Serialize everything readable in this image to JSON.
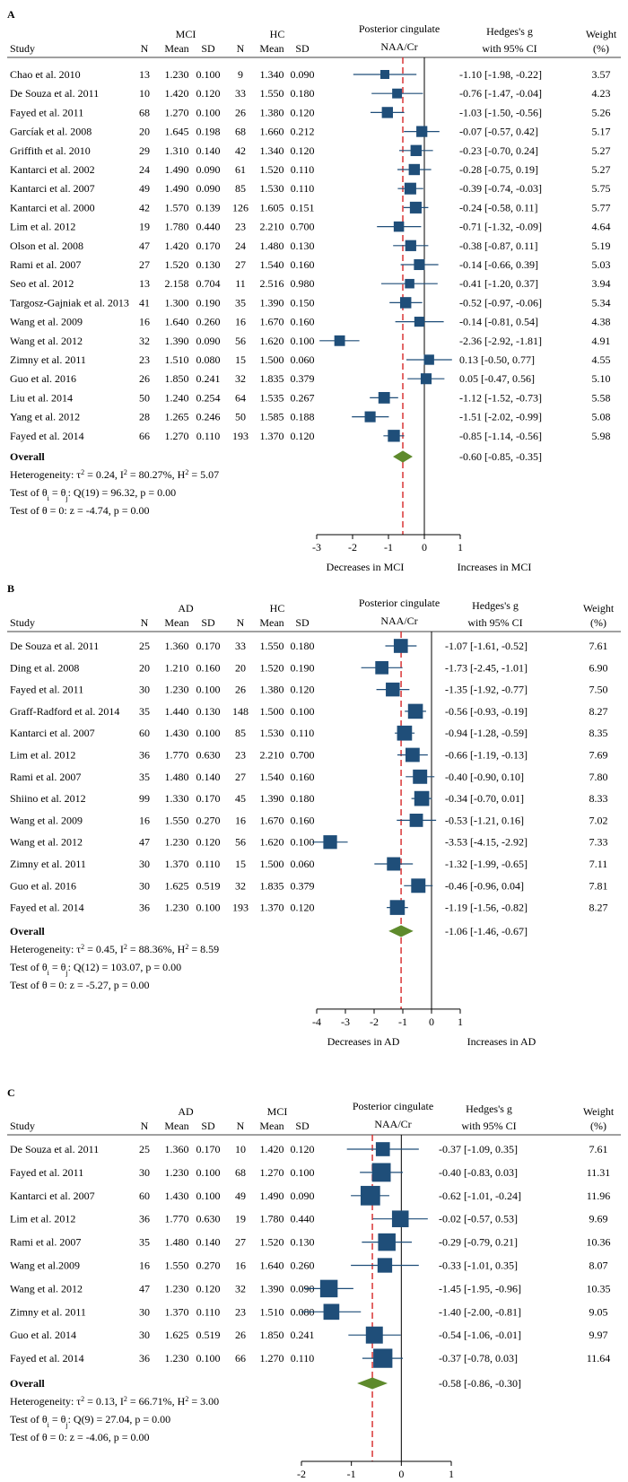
{
  "chart_data": [
    {
      "type": "forest",
      "panel": "A",
      "groups": [
        "MCI",
        "HC"
      ],
      "outcome_title": [
        "Posterior cingulate",
        "NAA/Cr"
      ],
      "columns": [
        "Study",
        "N",
        "Mean",
        "SD",
        "N",
        "Mean",
        "SD",
        "Hedges's g",
        "with 95% CI",
        "Weight",
        "(%)"
      ],
      "studies": [
        {
          "study": "Chao et al. 2010",
          "n1": "13",
          "m1": "1.230",
          "sd1": "0.100",
          "n2": "9",
          "m2": "1.340",
          "sd2": "0.090",
          "g": -1.1,
          "lo": -1.98,
          "hi": -0.22,
          "ci": "-1.10 [-1.98, -0.22]",
          "w": "3.57"
        },
        {
          "study": "De Souza et al. 2011",
          "n1": "10",
          "m1": "1.420",
          "sd1": "0.120",
          "n2": "33",
          "m2": "1.550",
          "sd2": "0.180",
          "g": -0.76,
          "lo": -1.47,
          "hi": -0.04,
          "ci": "-0.76 [-1.47, -0.04]",
          "w": "4.23"
        },
        {
          "study": "Fayed et al. 2011",
          "n1": "68",
          "m1": "1.270",
          "sd1": "0.100",
          "n2": "26",
          "m2": "1.380",
          "sd2": "0.120",
          "g": -1.03,
          "lo": -1.5,
          "hi": -0.56,
          "ci": "-1.03 [-1.50, -0.56]",
          "w": "5.26"
        },
        {
          "study": "Garcíak et al. 2008",
          "n1": "20",
          "m1": "1.645",
          "sd1": "0.198",
          "n2": "68",
          "m2": "1.660",
          "sd2": "0.212",
          "g": -0.07,
          "lo": -0.57,
          "hi": 0.42,
          "ci": "-0.07 [-0.57, 0.42]",
          "w": "5.17"
        },
        {
          "study": "Griffith et al. 2010",
          "n1": "29",
          "m1": "1.310",
          "sd1": "0.140",
          "n2": "42",
          "m2": "1.340",
          "sd2": "0.120",
          "g": -0.23,
          "lo": -0.7,
          "hi": 0.24,
          "ci": "-0.23 [-0.70, 0.24]",
          "w": "5.27"
        },
        {
          "study": "Kantarci et al. 2002",
          "n1": "24",
          "m1": "1.490",
          "sd1": "0.090",
          "n2": "61",
          "m2": "1.520",
          "sd2": "0.110",
          "g": -0.28,
          "lo": -0.75,
          "hi": 0.19,
          "ci": "-0.28 [-0.75, 0.19]",
          "w": "5.27"
        },
        {
          "study": "Kantarci et al. 2007",
          "n1": "49",
          "m1": "1.490",
          "sd1": "0.090",
          "n2": "85",
          "m2": "1.530",
          "sd2": "0.110",
          "g": -0.39,
          "lo": -0.74,
          "hi": -0.03,
          "ci": "-0.39 [-0.74, -0.03]",
          "w": "5.75"
        },
        {
          "study": "Kantarci et al. 2000",
          "n1": "42",
          "m1": "1.570",
          "sd1": "0.139",
          "n2": "126",
          "m2": "1.605",
          "sd2": "0.151",
          "g": -0.24,
          "lo": -0.58,
          "hi": 0.11,
          "ci": "-0.24 [-0.58, 0.11]",
          "w": "5.77"
        },
        {
          "study": "Lim et al. 2012",
          "n1": "19",
          "m1": "1.780",
          "sd1": "0.440",
          "n2": "23",
          "m2": "2.210",
          "sd2": "0.700",
          "g": -0.71,
          "lo": -1.32,
          "hi": -0.09,
          "ci": "-0.71 [-1.32, -0.09]",
          "w": "4.64"
        },
        {
          "study": "Olson et al. 2008",
          "n1": "47",
          "m1": "1.420",
          "sd1": "0.170",
          "n2": "24",
          "m2": "1.480",
          "sd2": "0.130",
          "g": -0.38,
          "lo": -0.87,
          "hi": 0.11,
          "ci": "-0.38 [-0.87, 0.11]",
          "w": "5.19"
        },
        {
          "study": "Rami et al. 2007",
          "n1": "27",
          "m1": "1.520",
          "sd1": "0.130",
          "n2": "27",
          "m2": "1.540",
          "sd2": "0.160",
          "g": -0.14,
          "lo": -0.66,
          "hi": 0.39,
          "ci": "-0.14 [-0.66, 0.39]",
          "w": "5.03"
        },
        {
          "study": "Seo et al. 2012",
          "n1": "13",
          "m1": "2.158",
          "sd1": "0.704",
          "n2": "11",
          "m2": "2.516",
          "sd2": "0.980",
          "g": -0.41,
          "lo": -1.2,
          "hi": 0.37,
          "ci": "-0.41 [-1.20, 0.37]",
          "w": "3.94"
        },
        {
          "study": "Targosz-Gajniak et al. 2013",
          "n1": "41",
          "m1": "1.300",
          "sd1": "0.190",
          "n2": "35",
          "m2": "1.390",
          "sd2": "0.150",
          "g": -0.52,
          "lo": -0.97,
          "hi": -0.06,
          "ci": "-0.52 [-0.97, -0.06]",
          "w": "5.34"
        },
        {
          "study": "Wang et al. 2009",
          "n1": "16",
          "m1": "1.640",
          "sd1": "0.260",
          "n2": "16",
          "m2": "1.670",
          "sd2": "0.160",
          "g": -0.14,
          "lo": -0.81,
          "hi": 0.54,
          "ci": "-0.14 [-0.81, 0.54]",
          "w": "4.38"
        },
        {
          "study": "Wang et al. 2012",
          "n1": "32",
          "m1": "1.390",
          "sd1": "0.090",
          "n2": "56",
          "m2": "1.620",
          "sd2": "0.100",
          "g": -2.36,
          "lo": -2.92,
          "hi": -1.81,
          "ci": "-2.36 [-2.92, -1.81]",
          "w": "4.91"
        },
        {
          "study": "Zimny et al. 2011",
          "n1": "23",
          "m1": "1.510",
          "sd1": "0.080",
          "n2": "15",
          "m2": "1.500",
          "sd2": "0.060",
          "g": 0.13,
          "lo": -0.5,
          "hi": 0.77,
          "ci": "0.13 [-0.50, 0.77]",
          "w": "4.55"
        },
        {
          "study": "Guo et al. 2016",
          "n1": "26",
          "m1": "1.850",
          "sd1": "0.241",
          "n2": "32",
          "m2": "1.835",
          "sd2": "0.379",
          "g": 0.05,
          "lo": -0.47,
          "hi": 0.56,
          "ci": "0.05 [-0.47, 0.56]",
          "w": "5.10"
        },
        {
          "study": "Liu et al. 2014",
          "n1": "50",
          "m1": "1.240",
          "sd1": "0.254",
          "n2": "64",
          "m2": "1.535",
          "sd2": "0.267",
          "g": -1.12,
          "lo": -1.52,
          "hi": -0.73,
          "ci": "-1.12 [-1.52, -0.73]",
          "w": "5.58"
        },
        {
          "study": "Yang et al. 2012",
          "n1": "28",
          "m1": "1.265",
          "sd1": "0.246",
          "n2": "50",
          "m2": "1.585",
          "sd2": "0.188",
          "g": -1.51,
          "lo": -2.02,
          "hi": -0.99,
          "ci": "-1.51 [-2.02, -0.99]",
          "w": "5.08"
        },
        {
          "study": "Fayed et al. 2014",
          "n1": "66",
          "m1": "1.270",
          "sd1": "0.110",
          "n2": "193",
          "m2": "1.370",
          "sd2": "0.120",
          "g": -0.85,
          "lo": -1.14,
          "hi": -0.56,
          "ci": "-0.85 [-1.14, -0.56]",
          "w": "5.98"
        }
      ],
      "overall": {
        "label": "Overall",
        "g": -0.6,
        "lo": -0.85,
        "hi": -0.35,
        "ci": "-0.60 [-0.85, -0.35]"
      },
      "stats": {
        "heterogeneity": {
          "pre": "Heterogeneity: τ",
          "mid1": " = 0.24, I",
          "mid2": " = 80.27%, H",
          "post": " = 5.07"
        },
        "test_q": {
          "pre": "Test of θ",
          "mid": " = θ",
          "post": ": Q(19) = 96.32, p = 0.00"
        },
        "test_z": "Test of θ = 0: z = -4.74, p = 0.00"
      },
      "axis": {
        "min": -3,
        "max": 1,
        "ticks": [
          "-3",
          "-2",
          "-1",
          "0",
          "1"
        ],
        "tick_values": [
          -3,
          -2,
          -1,
          0,
          1
        ]
      },
      "labels": {
        "left": "Decreases in MCI",
        "right": "Increases in MCI"
      }
    },
    {
      "type": "forest",
      "panel": "B",
      "groups": [
        "AD",
        "HC"
      ],
      "outcome_title": [
        "Posterior cingulate",
        "NAA/Cr"
      ],
      "columns": [
        "Study",
        "N",
        "Mean",
        "SD",
        "N",
        "Mean",
        "SD",
        "Hedges's g",
        "with 95% CI",
        "Weight",
        "(%)"
      ],
      "studies": [
        {
          "study": "De Souza et al. 2011",
          "n1": "25",
          "m1": "1.360",
          "sd1": "0.170",
          "n2": "33",
          "m2": "1.550",
          "sd2": "0.180",
          "g": -1.07,
          "lo": -1.61,
          "hi": -0.52,
          "ci": "-1.07 [-1.61, -0.52]",
          "w": "7.61"
        },
        {
          "study": "Ding et al. 2008",
          "n1": "20",
          "m1": "1.210",
          "sd1": "0.160",
          "n2": "20",
          "m2": "1.520",
          "sd2": "0.190",
          "g": -1.73,
          "lo": -2.45,
          "hi": -1.01,
          "ci": "-1.73 [-2.45, -1.01]",
          "w": "6.90"
        },
        {
          "study": "Fayed et al. 2011",
          "n1": "30",
          "m1": "1.230",
          "sd1": "0.100",
          "n2": "26",
          "m2": "1.380",
          "sd2": "0.120",
          "g": -1.35,
          "lo": -1.92,
          "hi": -0.77,
          "ci": "-1.35 [-1.92, -0.77]",
          "w": "7.50"
        },
        {
          "study": "Graff-Radford et al. 2014",
          "n1": "35",
          "m1": "1.440",
          "sd1": "0.130",
          "n2": "148",
          "m2": "1.500",
          "sd2": "0.100",
          "g": -0.56,
          "lo": -0.93,
          "hi": -0.19,
          "ci": "-0.56 [-0.93, -0.19]",
          "w": "8.27"
        },
        {
          "study": "Kantarci et al. 2007",
          "n1": "60",
          "m1": "1.430",
          "sd1": "0.100",
          "n2": "85",
          "m2": "1.530",
          "sd2": "0.110",
          "g": -0.94,
          "lo": -1.28,
          "hi": -0.59,
          "ci": "-0.94 [-1.28, -0.59]",
          "w": "8.35"
        },
        {
          "study": "Lim et al. 2012",
          "n1": "36",
          "m1": "1.770",
          "sd1": "0.630",
          "n2": "23",
          "m2": "2.210",
          "sd2": "0.700",
          "g": -0.66,
          "lo": -1.19,
          "hi": -0.13,
          "ci": "-0.66 [-1.19, -0.13]",
          "w": "7.69"
        },
        {
          "study": "Rami et al. 2007",
          "n1": "35",
          "m1": "1.480",
          "sd1": "0.140",
          "n2": "27",
          "m2": "1.540",
          "sd2": "0.160",
          "g": -0.4,
          "lo": -0.9,
          "hi": 0.1,
          "ci": "-0.40 [-0.90, 0.10]",
          "w": "7.80"
        },
        {
          "study": "Shiino et al. 2012",
          "n1": "99",
          "m1": "1.330",
          "sd1": "0.170",
          "n2": "45",
          "m2": "1.390",
          "sd2": "0.180",
          "g": -0.34,
          "lo": -0.7,
          "hi": 0.01,
          "ci": "-0.34 [-0.70, 0.01]",
          "w": "8.33"
        },
        {
          "study": "Wang et al. 2009",
          "n1": "16",
          "m1": "1.550",
          "sd1": "0.270",
          "n2": "16",
          "m2": "1.670",
          "sd2": "0.160",
          "g": -0.53,
          "lo": -1.21,
          "hi": 0.16,
          "ci": "-0.53 [-1.21, 0.16]",
          "w": "7.02"
        },
        {
          "study": "Wang et al. 2012",
          "n1": "47",
          "m1": "1.230",
          "sd1": "0.120",
          "n2": "56",
          "m2": "1.620",
          "sd2": "0.100",
          "g": -3.53,
          "lo": -4.15,
          "hi": -2.92,
          "ci": "-3.53 [-4.15, -2.92]",
          "w": "7.33"
        },
        {
          "study": "Zimny et al. 2011",
          "n1": "30",
          "m1": "1.370",
          "sd1": "0.110",
          "n2": "15",
          "m2": "1.500",
          "sd2": "0.060",
          "g": -1.32,
          "lo": -1.99,
          "hi": -0.65,
          "ci": "-1.32 [-1.99, -0.65]",
          "w": "7.11"
        },
        {
          "study": "Guo et al. 2016",
          "n1": "30",
          "m1": "1.625",
          "sd1": "0.519",
          "n2": "32",
          "m2": "1.835",
          "sd2": "0.379",
          "g": -0.46,
          "lo": -0.96,
          "hi": 0.04,
          "ci": "-0.46 [-0.96, 0.04]",
          "w": "7.81"
        },
        {
          "study": "Fayed et al. 2014",
          "n1": "36",
          "m1": "1.230",
          "sd1": "0.100",
          "n2": "193",
          "m2": "1.370",
          "sd2": "0.120",
          "g": -1.19,
          "lo": -1.56,
          "hi": -0.82,
          "ci": "-1.19 [-1.56, -0.82]",
          "w": "8.27"
        }
      ],
      "overall": {
        "label": "Overall",
        "g": -1.06,
        "lo": -1.46,
        "hi": -0.67,
        "ci": "-1.06 [-1.46, -0.67]"
      },
      "stats": {
        "heterogeneity": {
          "pre": "Heterogeneity: τ",
          "mid1": " = 0.45, I",
          "mid2": " = 88.36%, H",
          "post": " = 8.59"
        },
        "test_q": {
          "pre": "Test of θ",
          "mid": " = θ",
          "post": ": Q(12) = 103.07, p = 0.00"
        },
        "test_z": "Test of θ = 0: z = -5.27, p = 0.00"
      },
      "axis": {
        "min": -4,
        "max": 1,
        "ticks": [
          "-4",
          "-3",
          "-2",
          "-1",
          "0",
          "1"
        ],
        "tick_values": [
          -4,
          -3,
          -2,
          -1,
          0,
          1
        ]
      },
      "labels": {
        "left": "Decreases in AD",
        "right": "Increases in AD"
      }
    },
    {
      "type": "forest",
      "panel": "C",
      "groups": [
        "AD",
        "MCI"
      ],
      "outcome_title": [
        "Posterior cingulate",
        "NAA/Cr"
      ],
      "columns": [
        "Study",
        "N",
        "Mean",
        "SD",
        "N",
        "Mean",
        "SD",
        "Hedges's g",
        "with 95% CI",
        "Weight",
        "(%)"
      ],
      "studies": [
        {
          "study": "De Souza et al. 2011",
          "n1": "25",
          "m1": "1.360",
          "sd1": "0.170",
          "n2": "10",
          "m2": "1.420",
          "sd2": "0.120",
          "g": -0.37,
          "lo": -1.09,
          "hi": 0.35,
          "ci": "-0.37 [-1.09, 0.35]",
          "w": "7.61"
        },
        {
          "study": "Fayed et al. 2011",
          "n1": "30",
          "m1": "1.230",
          "sd1": "0.100",
          "n2": "68",
          "m2": "1.270",
          "sd2": "0.100",
          "g": -0.4,
          "lo": -0.83,
          "hi": 0.03,
          "ci": "-0.40 [-0.83, 0.03]",
          "w": "11.31"
        },
        {
          "study": "Kantarci et al. 2007",
          "n1": "60",
          "m1": "1.430",
          "sd1": "0.100",
          "n2": "49",
          "m2": "1.490",
          "sd2": "0.090",
          "g": -0.62,
          "lo": -1.01,
          "hi": -0.24,
          "ci": "-0.62 [-1.01, -0.24]",
          "w": "11.96"
        },
        {
          "study": "Lim et al. 2012",
          "n1": "36",
          "m1": "1.770",
          "sd1": "0.630",
          "n2": "19",
          "m2": "1.780",
          "sd2": "0.440",
          "g": -0.02,
          "lo": -0.57,
          "hi": 0.53,
          "ci": "-0.02 [-0.57, 0.53]",
          "w": "9.69"
        },
        {
          "study": "Rami et al. 2007",
          "n1": "35",
          "m1": "1.480",
          "sd1": "0.140",
          "n2": "27",
          "m2": "1.520",
          "sd2": "0.130",
          "g": -0.29,
          "lo": -0.79,
          "hi": 0.21,
          "ci": "-0.29 [-0.79, 0.21]",
          "w": "10.36"
        },
        {
          "study": "Wang et al.2009",
          "n1": "16",
          "m1": "1.550",
          "sd1": "0.270",
          "n2": "16",
          "m2": "1.640",
          "sd2": "0.260",
          "g": -0.33,
          "lo": -1.01,
          "hi": 0.35,
          "ci": "-0.33 [-1.01, 0.35]",
          "w": "8.07"
        },
        {
          "study": "Wang et al. 2012",
          "n1": "47",
          "m1": "1.230",
          "sd1": "0.120",
          "n2": "32",
          "m2": "1.390",
          "sd2": "0.090",
          "g": -1.45,
          "lo": -1.95,
          "hi": -0.96,
          "ci": "-1.45 [-1.95, -0.96]",
          "w": "10.35"
        },
        {
          "study": "Zimny et al. 2011",
          "n1": "30",
          "m1": "1.370",
          "sd1": "0.110",
          "n2": "23",
          "m2": "1.510",
          "sd2": "0.080",
          "g": -1.4,
          "lo": -2.0,
          "hi": -0.81,
          "ci": "-1.40 [-2.00, -0.81]",
          "w": "9.05"
        },
        {
          "study": "Guo et al. 2014",
          "n1": "30",
          "m1": "1.625",
          "sd1": "0.519",
          "n2": "26",
          "m2": "1.850",
          "sd2": "0.241",
          "g": -0.54,
          "lo": -1.06,
          "hi": -0.01,
          "ci": "-0.54 [-1.06, -0.01]",
          "w": "9.97"
        },
        {
          "study": "Fayed et al. 2014",
          "n1": "36",
          "m1": "1.230",
          "sd1": "0.100",
          "n2": "66",
          "m2": "1.270",
          "sd2": "0.110",
          "g": -0.37,
          "lo": -0.78,
          "hi": 0.03,
          "ci": "-0.37 [-0.78, 0.03]",
          "w": "11.64"
        }
      ],
      "overall": {
        "label": "Overall",
        "g": -0.58,
        "lo": -0.86,
        "hi": -0.3,
        "ci": "-0.58 [-0.86, -0.30]"
      },
      "stats": {
        "heterogeneity": {
          "pre": "Heterogeneity: τ",
          "mid1": " = 0.13, I",
          "mid2": " = 66.71%, H",
          "post": " = 3.00"
        },
        "test_q": {
          "pre": "Test of θ",
          "mid": " = θ",
          "post": ": Q(9) = 27.04, p = 0.00"
        },
        "test_z": "Test of θ = 0: z = -4.06, p = 0.00"
      },
      "axis": {
        "min": -2,
        "max": 1,
        "ticks": [
          "-2",
          "-1",
          "0",
          "1"
        ],
        "tick_values": [
          -2,
          -1,
          0,
          1
        ]
      },
      "labels": {
        "left": "Decreases in AD",
        "right": "Increases in AD"
      }
    }
  ],
  "colors": {
    "marker": "#1f4e79",
    "diamond": "#5e8a2c",
    "overall_line": "#d62728",
    "text": "#000000"
  }
}
